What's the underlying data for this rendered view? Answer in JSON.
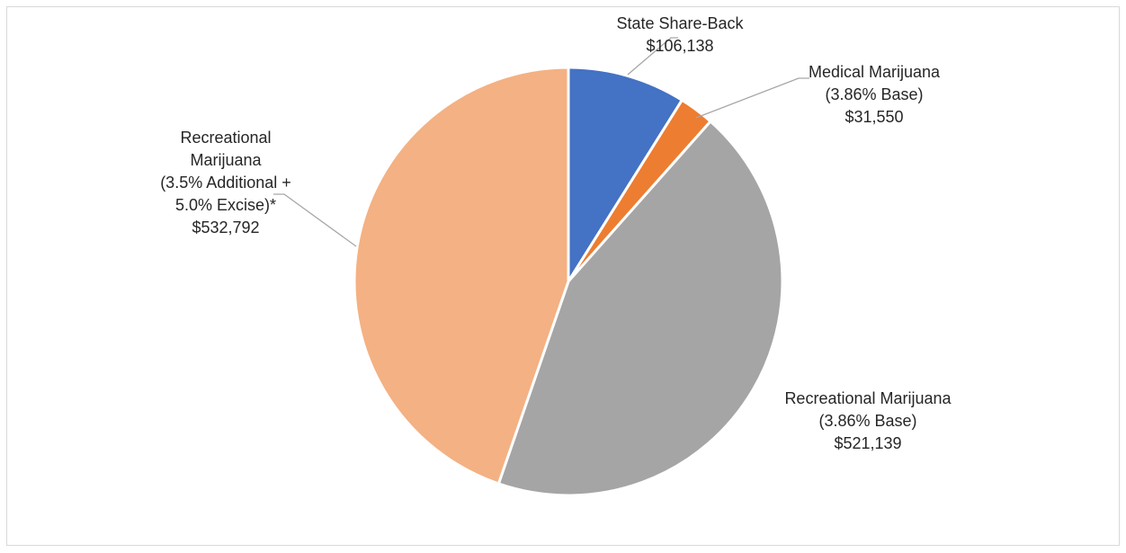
{
  "chart_data": {
    "type": "pie",
    "slices": [
      {
        "name": "State Share-Back",
        "value": 106138,
        "value_label": "$106,138",
        "label_lines": [
          "State Share-Back",
          "$106,138"
        ],
        "color": "#4472c4"
      },
      {
        "name": "Medical Marijuana (3.86% Base)",
        "value": 31550,
        "value_label": "$31,550",
        "label_lines": [
          "Medical Marijuana",
          "(3.86% Base)",
          "$31,550"
        ],
        "color": "#ed7d31"
      },
      {
        "name": "Recreational Marijuana (3.86% Base)",
        "value": 521139,
        "value_label": "$521,139",
        "label_lines": [
          "Recreational Marijuana",
          "(3.86% Base)",
          "$521,139"
        ],
        "color": "#a5a5a5"
      },
      {
        "name": "Recreational Marijuana (3.5% Additional + 5.0% Excise)*",
        "value": 532792,
        "value_label": "$532,792",
        "label_lines": [
          "Recreational",
          "Marijuana",
          "(3.5% Additional +",
          "5.0% Excise)*",
          "$532,792"
        ],
        "color": "#f4b183"
      }
    ],
    "start_angle": "12 o'clock",
    "direction": "clockwise",
    "legend": "none",
    "title": ""
  }
}
